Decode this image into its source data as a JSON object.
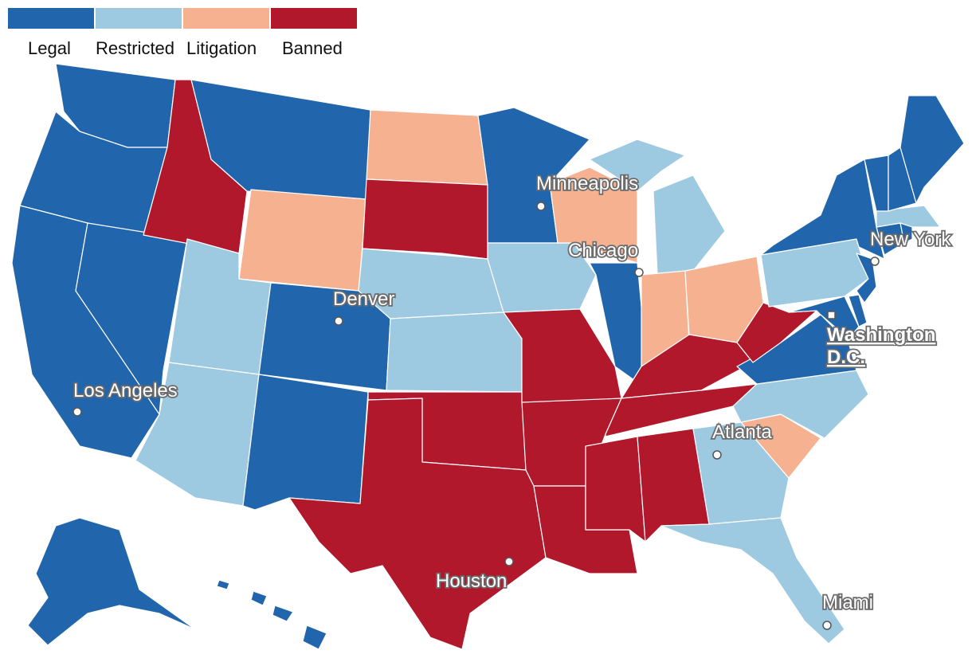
{
  "legend": {
    "items": [
      {
        "label": "Legal",
        "color": "#2166ac"
      },
      {
        "label": "Restricted",
        "color": "#9ecae1"
      },
      {
        "label": "Litigation",
        "color": "#f6b190"
      },
      {
        "label": "Banned",
        "color": "#b2182b"
      }
    ]
  },
  "map": {
    "state_categories": {
      "WA": "Legal",
      "OR": "Legal",
      "CA": "Legal",
      "NV": "Legal",
      "MT": "Legal",
      "CO": "Legal",
      "NM": "Legal",
      "MN": "Legal",
      "IL": "Legal",
      "NY": "Legal",
      "VT": "Legal",
      "NH": "Legal",
      "ME": "Legal",
      "CT": "Legal",
      "RI": "Legal",
      "NJ": "Legal",
      "DE": "Legal",
      "MD": "Legal",
      "VA": "Legal",
      "AK": "Legal",
      "HI": "Legal",
      "UT": "Restricted",
      "AZ": "Restricted",
      "NE": "Restricted",
      "KS": "Restricted",
      "IA": "Restricted",
      "MI": "Restricted",
      "PA": "Restricted",
      "NC": "Restricted",
      "GA": "Restricted",
      "FL": "Restricted",
      "MA": "Restricted",
      "ND": "Litigation",
      "WY": "Litigation",
      "WI": "Litigation",
      "IN": "Litigation",
      "OH": "Litigation",
      "SC": "Litigation",
      "ID": "Banned",
      "SD": "Banned",
      "OK": "Banned",
      "TX": "Banned",
      "MO": "Banned",
      "AR": "Banned",
      "LA": "Banned",
      "MS": "Banned",
      "AL": "Banned",
      "TN": "Banned",
      "KY": "Banned",
      "WV": "Banned"
    },
    "cities": [
      {
        "name": "Minneapolis"
      },
      {
        "name": "Chicago"
      },
      {
        "name": "New York"
      },
      {
        "name": "Denver"
      },
      {
        "name": "Washington"
      },
      {
        "name": "D.C."
      },
      {
        "name": "Los Angeles"
      },
      {
        "name": "Atlanta"
      },
      {
        "name": "Houston"
      },
      {
        "name": "Miami"
      }
    ]
  }
}
